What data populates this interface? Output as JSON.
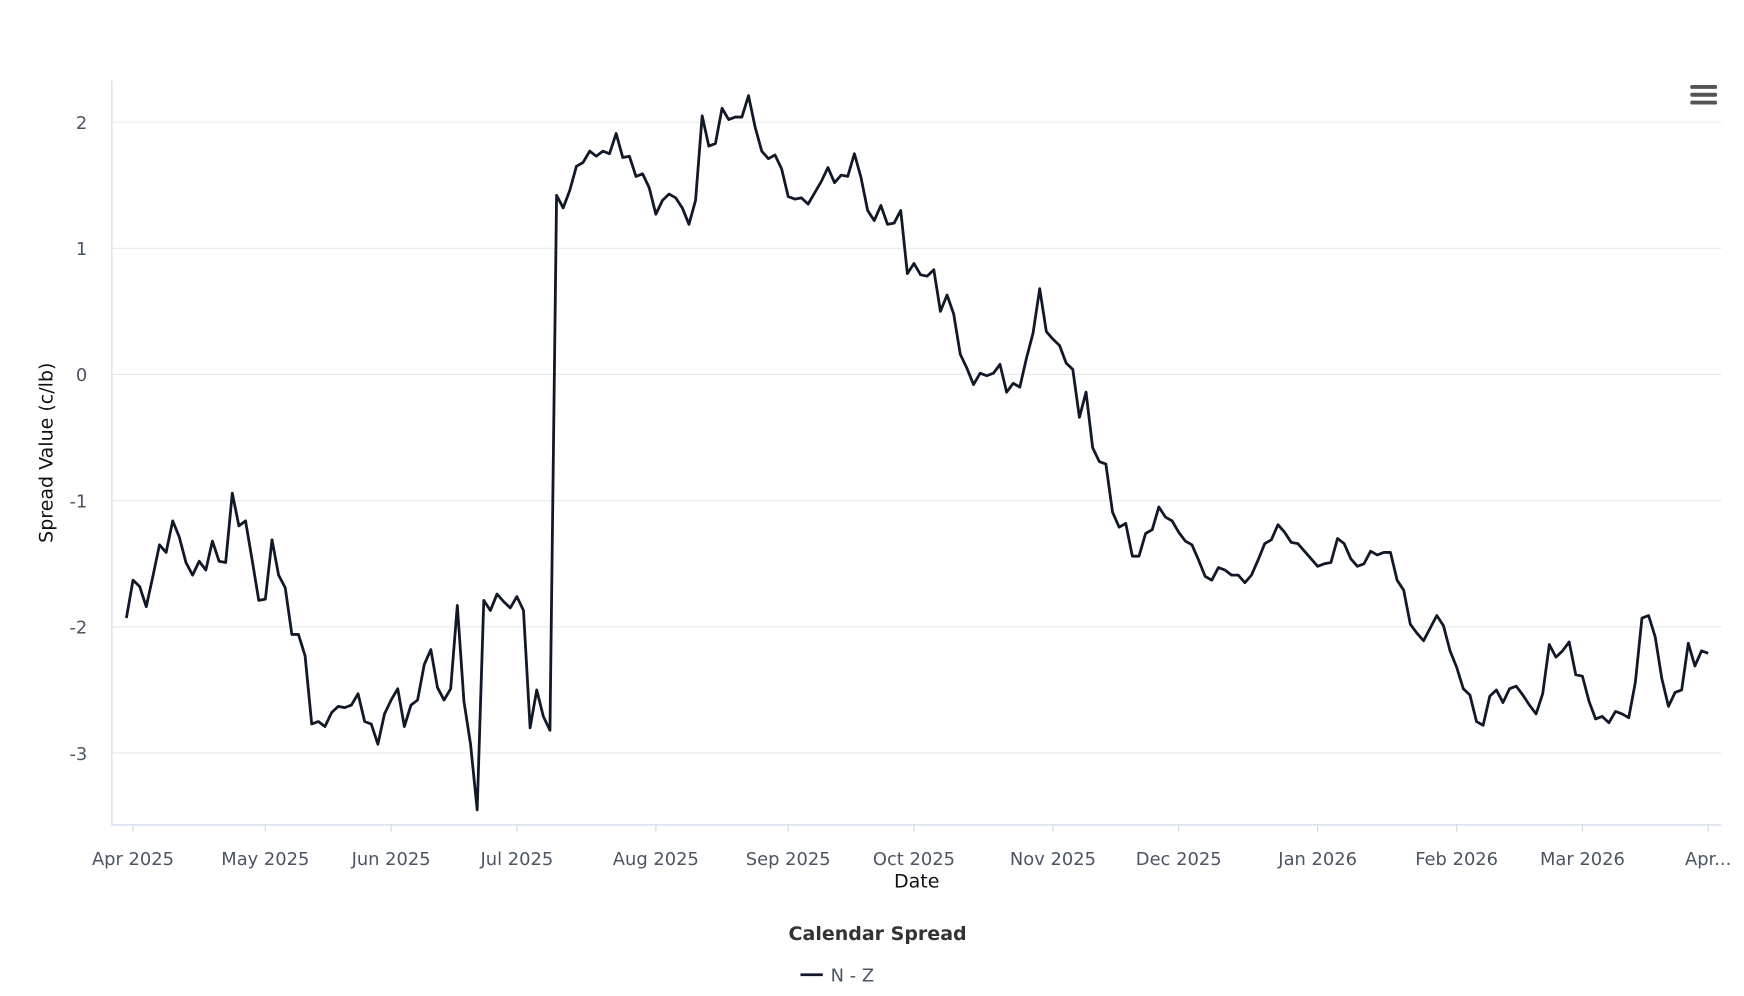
{
  "chart_data": {
    "type": "line",
    "x_title": "Date",
    "y_title": "Spread Value (c/lb)",
    "legend_title": "Calendar Spread",
    "legend": "bottom",
    "grid": true,
    "ylim": [
      -3.57,
      2.33
    ],
    "yticks": [
      -3,
      -2,
      -1,
      0,
      1,
      2
    ],
    "categories": [
      null,
      "Apr 2025",
      null,
      null,
      null,
      null,
      null,
      null,
      null,
      null,
      null,
      null,
      null,
      null,
      null,
      null,
      null,
      null,
      null,
      null,
      null,
      "May 2025",
      null,
      null,
      null,
      null,
      null,
      null,
      null,
      null,
      null,
      null,
      null,
      null,
      null,
      null,
      null,
      null,
      null,
      null,
      "Jun 2025",
      null,
      null,
      null,
      null,
      null,
      null,
      null,
      null,
      null,
      null,
      null,
      null,
      null,
      null,
      null,
      null,
      null,
      null,
      "Jul 2025",
      null,
      null,
      null,
      null,
      null,
      null,
      null,
      null,
      null,
      null,
      null,
      null,
      null,
      null,
      null,
      null,
      null,
      null,
      null,
      null,
      "Aug 2025",
      null,
      null,
      null,
      null,
      null,
      null,
      null,
      null,
      null,
      null,
      null,
      null,
      null,
      null,
      null,
      null,
      null,
      null,
      null,
      "Sep 2025",
      null,
      null,
      null,
      null,
      null,
      null,
      null,
      null,
      null,
      null,
      null,
      null,
      null,
      null,
      null,
      null,
      null,
      null,
      "Oct 2025",
      null,
      null,
      null,
      null,
      null,
      null,
      null,
      null,
      null,
      null,
      null,
      null,
      null,
      null,
      null,
      null,
      null,
      null,
      null,
      null,
      "Nov 2025",
      null,
      null,
      null,
      null,
      null,
      null,
      null,
      null,
      null,
      null,
      null,
      null,
      null,
      null,
      null,
      null,
      null,
      null,
      "Dec 2025",
      null,
      null,
      null,
      null,
      null,
      null,
      null,
      null,
      null,
      null,
      null,
      null,
      null,
      null,
      null,
      null,
      null,
      null,
      null,
      null,
      "Jan 2026",
      null,
      null,
      null,
      null,
      null,
      null,
      null,
      null,
      null,
      null,
      null,
      null,
      null,
      null,
      null,
      null,
      null,
      null,
      null,
      null,
      "Feb 2026",
      null,
      null,
      null,
      null,
      null,
      null,
      null,
      null,
      null,
      null,
      null,
      null,
      null,
      null,
      null,
      null,
      null,
      null,
      "Mar 2026",
      null,
      null,
      null,
      null,
      null,
      null,
      null,
      null,
      null,
      null,
      null,
      null,
      null,
      null,
      null,
      null,
      null,
      null,
      "Apr..."
    ],
    "series": [
      {
        "name": "N - Z",
        "color": "#111827",
        "values": [
          -1.93,
          -1.63,
          -1.68,
          -1.84,
          -1.6,
          -1.35,
          -1.41,
          -1.16,
          -1.29,
          -1.49,
          -1.59,
          -1.48,
          -1.55,
          -1.32,
          -1.48,
          -1.49,
          -0.94,
          -1.2,
          -1.16,
          -1.47,
          -1.79,
          -1.78,
          -1.31,
          -1.59,
          -1.69,
          -2.06,
          -2.06,
          -2.23,
          -2.77,
          -2.75,
          -2.79,
          -2.68,
          -2.63,
          -2.64,
          -2.62,
          -2.53,
          -2.75,
          -2.77,
          -2.93,
          -2.69,
          -2.58,
          -2.49,
          -2.79,
          -2.62,
          -2.58,
          -2.3,
          -2.18,
          -2.48,
          -2.58,
          -2.49,
          -1.83,
          -2.59,
          -2.93,
          -3.45,
          -1.79,
          -1.87,
          -1.74,
          -1.8,
          -1.85,
          -1.76,
          -1.87,
          -2.8,
          -2.5,
          -2.71,
          -2.82,
          1.42,
          1.32,
          1.46,
          1.65,
          1.68,
          1.77,
          1.73,
          1.77,
          1.75,
          1.91,
          1.72,
          1.73,
          1.57,
          1.59,
          1.48,
          1.27,
          1.38,
          1.43,
          1.4,
          1.32,
          1.19,
          1.38,
          2.05,
          1.81,
          1.83,
          2.11,
          2.02,
          2.04,
          2.04,
          2.21,
          1.96,
          1.77,
          1.71,
          1.74,
          1.63,
          1.41,
          1.39,
          1.4,
          1.35,
          1.44,
          1.53,
          1.64,
          1.52,
          1.58,
          1.57,
          1.75,
          1.56,
          1.3,
          1.22,
          1.34,
          1.19,
          1.2,
          1.3,
          0.8,
          0.88,
          0.79,
          0.78,
          0.83,
          0.5,
          0.63,
          0.48,
          0.16,
          0.05,
          -0.08,
          0.01,
          -0.01,
          0.01,
          0.08,
          -0.14,
          -0.07,
          -0.1,
          0.13,
          0.33,
          0.68,
          0.34,
          0.28,
          0.23,
          0.09,
          0.04,
          -0.34,
          -0.14,
          -0.58,
          -0.69,
          -0.71,
          -1.09,
          -1.21,
          -1.18,
          -1.44,
          -1.44,
          -1.26,
          -1.23,
          -1.05,
          -1.13,
          -1.16,
          -1.25,
          -1.32,
          -1.35,
          -1.47,
          -1.6,
          -1.63,
          -1.53,
          -1.55,
          -1.59,
          -1.59,
          -1.65,
          -1.59,
          -1.47,
          -1.34,
          -1.31,
          -1.19,
          -1.25,
          -1.33,
          -1.34,
          -1.4,
          -1.46,
          -1.52,
          -1.5,
          -1.49,
          -1.3,
          -1.34,
          -1.46,
          -1.52,
          -1.5,
          -1.4,
          -1.43,
          -1.41,
          -1.41,
          -1.63,
          -1.71,
          -1.98,
          -2.05,
          -2.11,
          -2.01,
          -1.91,
          -1.99,
          -2.19,
          -2.32,
          -2.49,
          -2.54,
          -2.75,
          -2.78,
          -2.55,
          -2.5,
          -2.6,
          -2.49,
          -2.47,
          -2.54,
          -2.62,
          -2.69,
          -2.53,
          -2.14,
          -2.24,
          -2.19,
          -2.12,
          -2.38,
          -2.39,
          -2.59,
          -2.73,
          -2.71,
          -2.76,
          -2.67,
          -2.69,
          -2.72,
          -2.44,
          -1.93,
          -1.91,
          -2.08,
          -2.41,
          -2.63,
          -2.52,
          -2.5,
          -2.13,
          -2.31,
          -2.19,
          -2.21
        ]
      }
    ]
  }
}
